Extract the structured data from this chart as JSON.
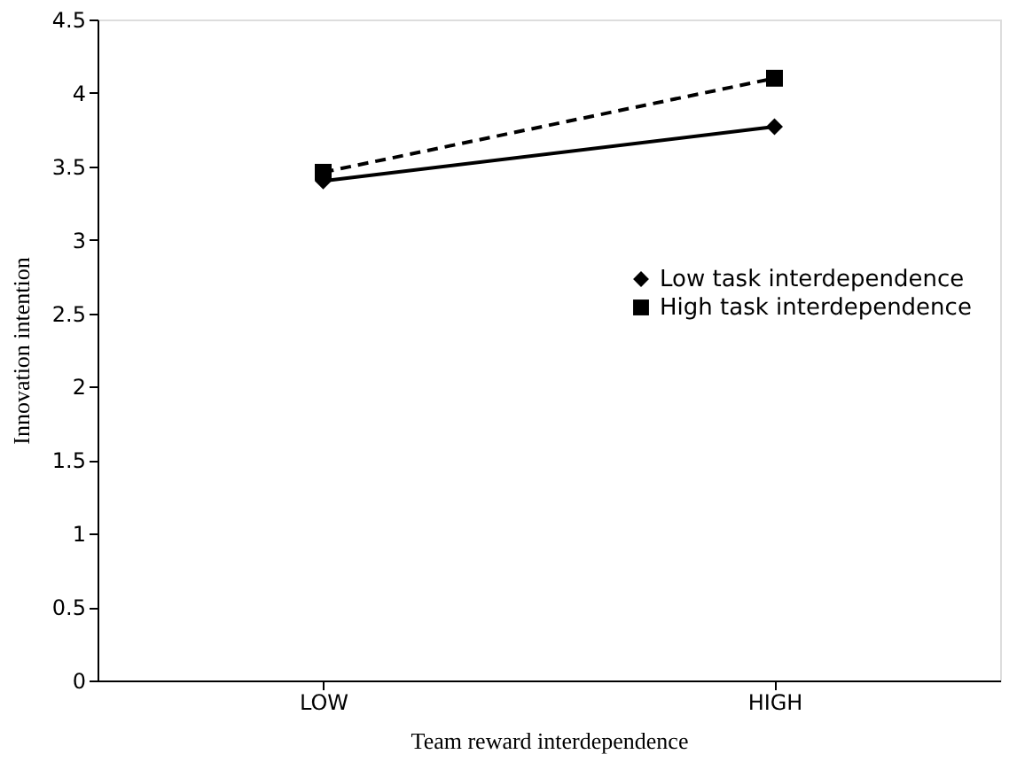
{
  "chart_data": {
    "type": "line",
    "xlabel": "Team reward interdependence",
    "ylabel": "Innovation intention",
    "categories": [
      "LOW",
      "HIGH"
    ],
    "series": [
      {
        "name": "Low task interdependence",
        "color": "#000000",
        "values": [
          3.4,
          3.77
        ],
        "marker": "diamond",
        "line_style": "solid"
      },
      {
        "name": "High task interdependence",
        "color": "#000000",
        "values": [
          3.46,
          4.1
        ],
        "marker": "square",
        "line_style": "dashed"
      }
    ],
    "ylim": [
      0,
      4.5
    ],
    "yticks": [
      0,
      0.5,
      1,
      1.5,
      2,
      2.5,
      3,
      3.5,
      4,
      4.5
    ],
    "grid": false,
    "legend": "right"
  }
}
